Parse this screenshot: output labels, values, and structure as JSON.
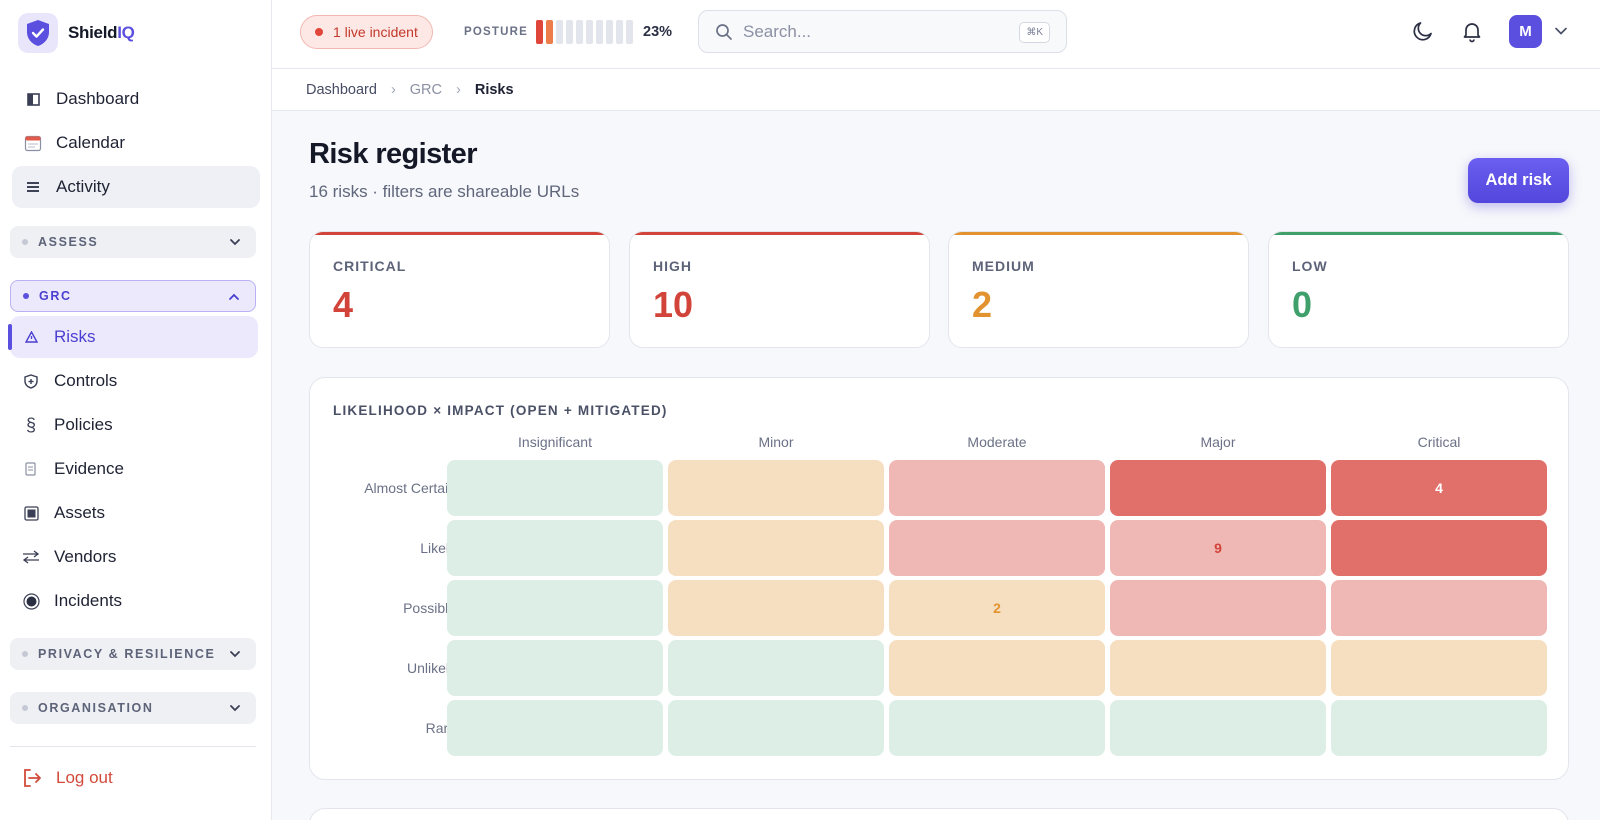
{
  "brand": {
    "name_main": "Shield",
    "name_accent": "IQ"
  },
  "sidebar": {
    "top_items": [
      {
        "label": "Dashboard",
        "icon": "dashboard-icon"
      },
      {
        "label": "Calendar",
        "icon": "calendar-icon"
      },
      {
        "label": "Activity",
        "icon": "activity-icon"
      }
    ],
    "groups": {
      "assess": "ASSESS",
      "grc": "GRC",
      "privacy": "PRIVACY & RESILIENCE",
      "organisation": "ORGANISATION"
    },
    "grc_items": [
      {
        "label": "Risks",
        "icon": "warning-icon"
      },
      {
        "label": "Controls",
        "icon": "shield-plus-icon"
      },
      {
        "label": "Policies",
        "icon": "section-icon"
      },
      {
        "label": "Evidence",
        "icon": "document-icon"
      },
      {
        "label": "Assets",
        "icon": "asset-icon"
      },
      {
        "label": "Vendors",
        "icon": "exchange-icon"
      },
      {
        "label": "Incidents",
        "icon": "target-icon"
      }
    ],
    "logout": "Log out"
  },
  "topbar": {
    "incident": "1 live incident",
    "posture_label": "POSTURE",
    "posture_value": "23%",
    "posture_fraction": 0.23,
    "search_placeholder": "Search...",
    "search_shortcut": "⌘K",
    "avatar_initial": "M"
  },
  "breadcrumb": {
    "items": [
      "Dashboard",
      "GRC",
      "Risks"
    ]
  },
  "page": {
    "title": "Risk register",
    "subtitle": "16 risks · filters are shareable URLs",
    "add_button": "Add risk"
  },
  "stats": [
    {
      "label": "CRITICAL",
      "value": "4",
      "color": "#d2443a"
    },
    {
      "label": "HIGH",
      "value": "10",
      "color": "#d2443a"
    },
    {
      "label": "MEDIUM",
      "value": "2",
      "color": "#e2932f"
    },
    {
      "label": "LOW",
      "value": "0",
      "color": "#3fa06c"
    }
  ],
  "matrix": {
    "title": "LIKELIHOOD × IMPACT (OPEN + MITIGATED)",
    "impact": [
      "Insignificant",
      "Minor",
      "Moderate",
      "Major",
      "Critical"
    ],
    "likelihood": [
      "Almost Certain",
      "Likely",
      "Possible",
      "Unlikely",
      "Rare"
    ],
    "counts": {
      "r0c4": "4",
      "r1c3": "9",
      "r2c2": "2"
    }
  }
}
